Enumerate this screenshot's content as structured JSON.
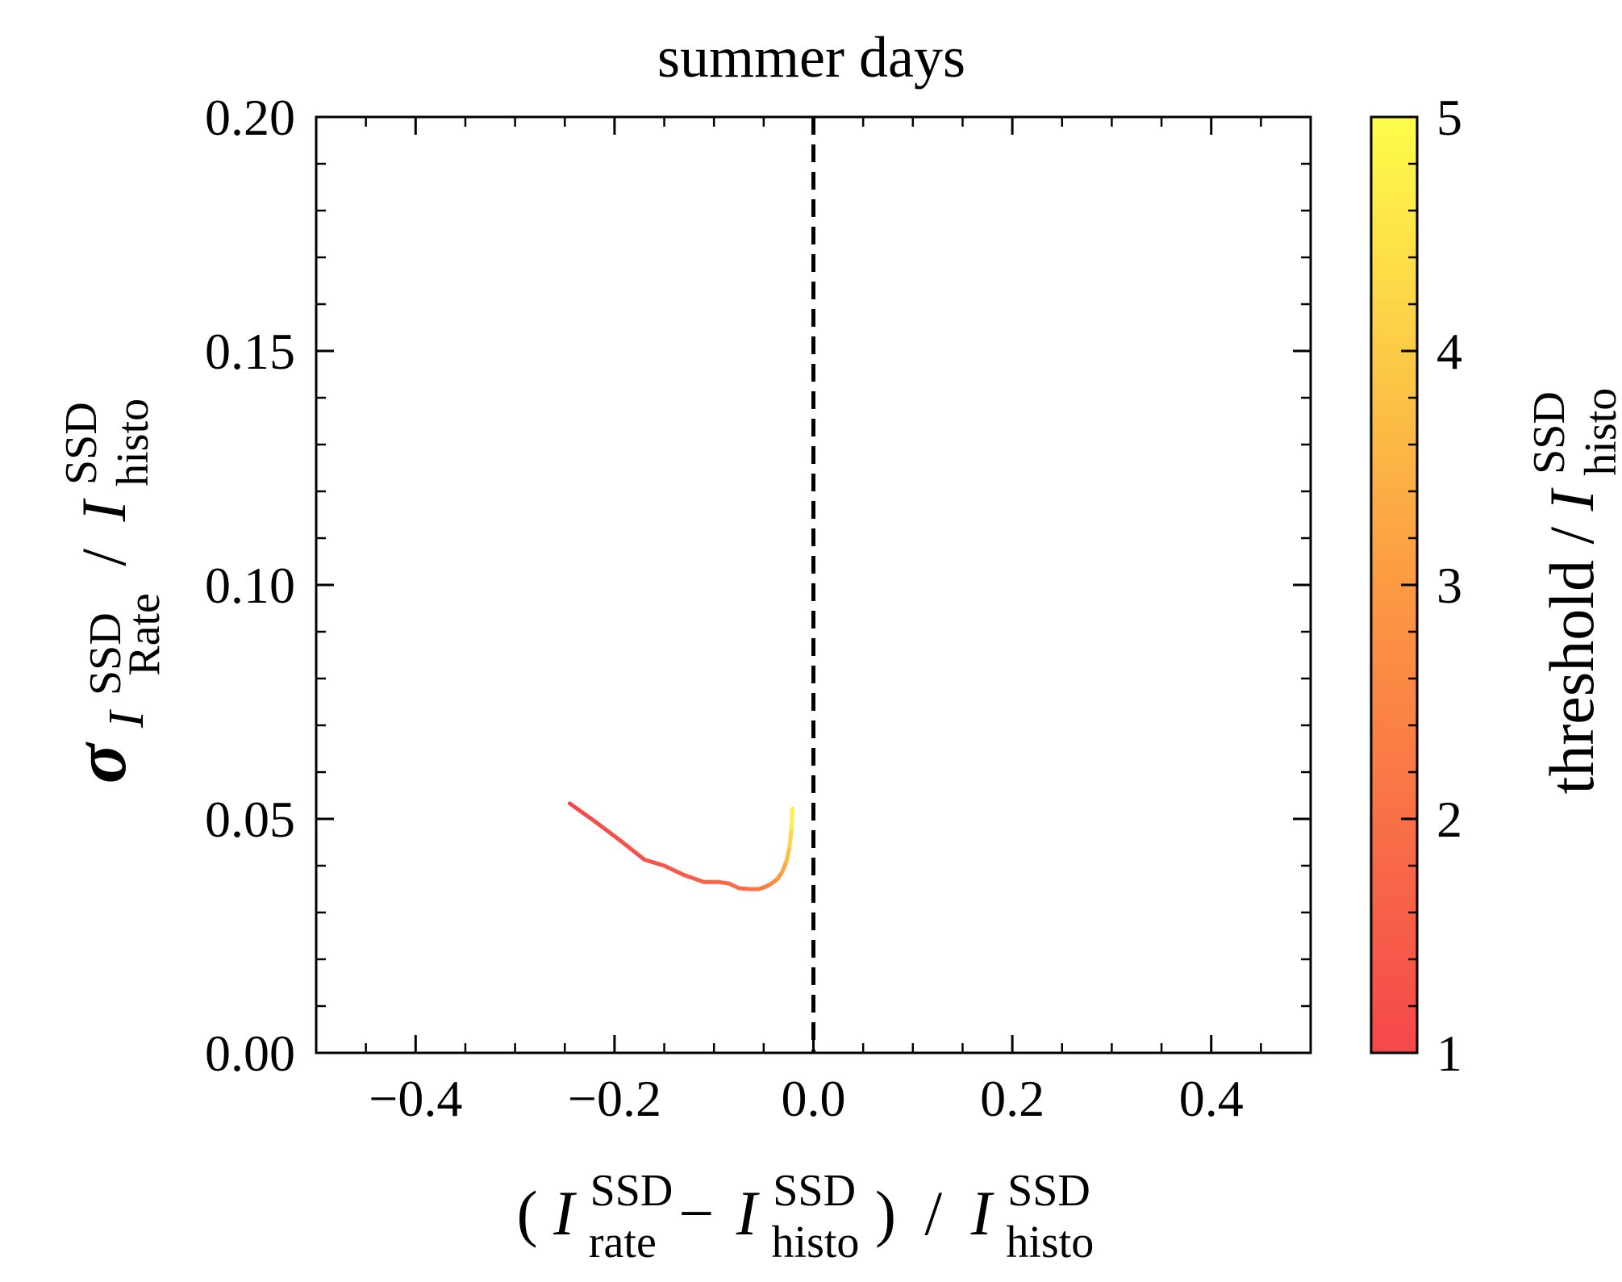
{
  "chart_data": {
    "type": "line",
    "title": "summer days",
    "xlabel": {
      "open": "(",
      "I1": "I",
      "I1_sup": "SSD",
      "I1_sub": "rate",
      "minus": "−",
      "I2": "I",
      "I2_sup": "SSD",
      "I2_sub": "histo",
      "close": ")",
      "slash": "/",
      "I3": "I",
      "I3_sup": "SSD",
      "I3_sub": "histo"
    },
    "ylabel": {
      "sigma": "σ",
      "I1": "I",
      "I1_sup": "SSD",
      "I1_sub": "Rate",
      "slash": "/",
      "I2": "I",
      "I2_sup": "SSD",
      "I2_sub": "histo"
    },
    "colorbar_label": {
      "prefix": "threshold / ",
      "I": "I",
      "I_sup": "SSD",
      "I_sub": "histo"
    },
    "xlim": [
      -0.5,
      0.5
    ],
    "ylim": [
      0.0,
      0.2
    ],
    "x_ticks": [
      -0.4,
      -0.2,
      0.0,
      0.2,
      0.4
    ],
    "x_tick_labels": [
      "−0.4",
      "−0.2",
      "0.0",
      "0.2",
      "0.4"
    ],
    "y_ticks": [
      0.0,
      0.05,
      0.1,
      0.15,
      0.2
    ],
    "y_tick_labels": [
      "0.00",
      "0.05",
      "0.10",
      "0.15",
      "0.20"
    ],
    "colorbar": {
      "range": [
        1,
        5
      ],
      "ticks": [
        1,
        2,
        3,
        4,
        5
      ],
      "tick_labels": [
        "1",
        "2",
        "3",
        "4",
        "5"
      ],
      "color_low": "#f5474b",
      "color_mid": "#fc9a43",
      "color_high": "#fdfd4a"
    },
    "reference_line": {
      "x": 0.0,
      "style": "dashed",
      "color": "#000000"
    },
    "series": [
      {
        "x": [
          -0.245,
          -0.22,
          -0.195,
          -0.17,
          -0.15,
          -0.13,
          -0.11,
          -0.095,
          -0.085,
          -0.075,
          -0.065,
          -0.055,
          -0.048,
          -0.042,
          -0.036,
          -0.031,
          -0.027,
          -0.024,
          -0.022,
          -0.021
        ],
        "y": [
          0.0533,
          0.0495,
          0.0455,
          0.0413,
          0.04,
          0.038,
          0.0365,
          0.0365,
          0.0362,
          0.0352,
          0.035,
          0.035,
          0.0355,
          0.0362,
          0.0372,
          0.0388,
          0.041,
          0.044,
          0.048,
          0.0522
        ],
        "threshold": [
          1.0,
          1.1,
          1.2,
          1.3,
          1.4,
          1.5,
          1.6,
          1.7,
          1.8,
          1.9,
          2.0,
          2.1,
          2.3,
          2.5,
          2.8,
          3.1,
          3.5,
          3.9,
          4.4,
          5.0
        ]
      }
    ]
  }
}
